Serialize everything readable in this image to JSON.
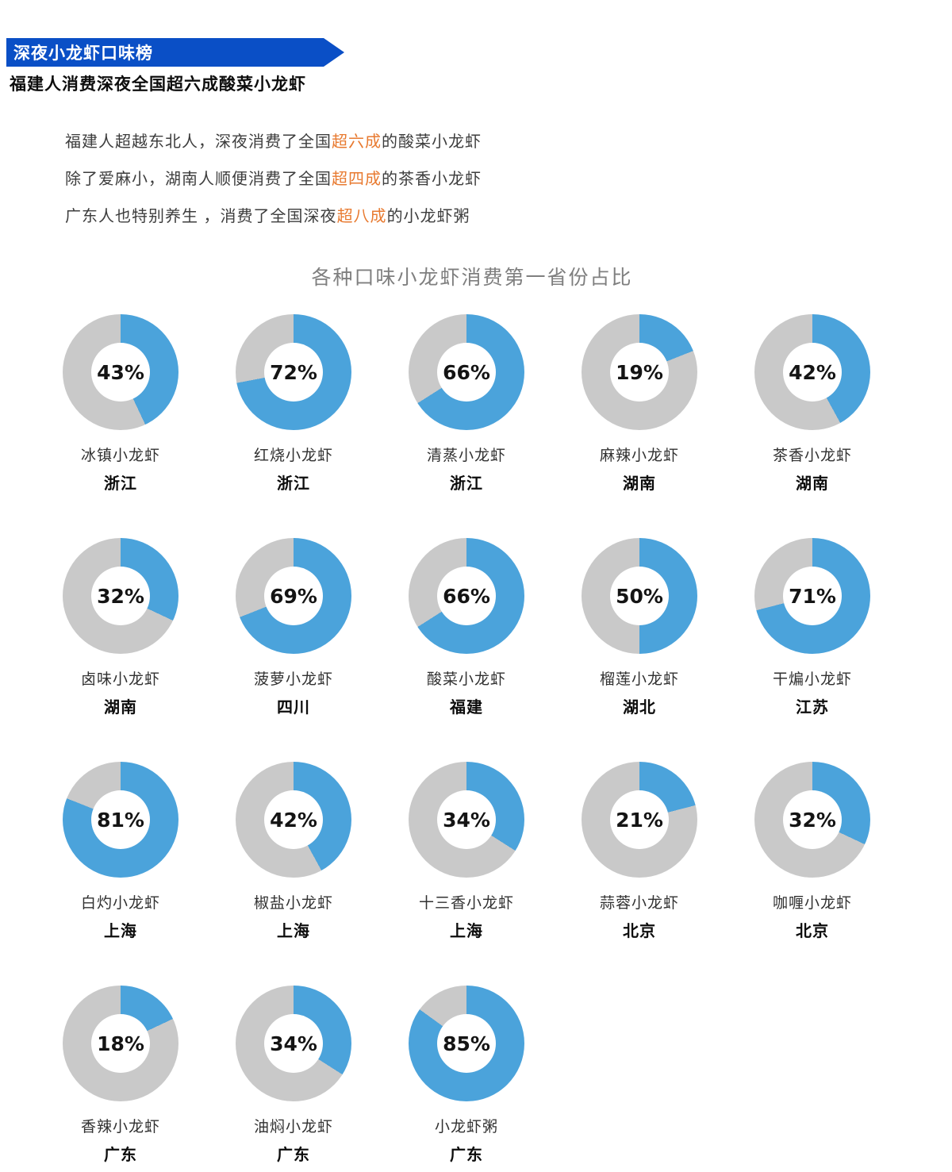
{
  "header": {
    "banner_title": "深夜小龙虾口味榜",
    "subtitle": "福建人消费深夜全国超六成酸菜小龙虾",
    "banner_color": "#0a4fc6"
  },
  "intro": {
    "highlight_color": "#e87a30",
    "lines": [
      {
        "pre": "福建人超越东北人，深夜消费了全国",
        "highlight": "超六成",
        "post": "的酸菜小龙虾"
      },
      {
        "pre": "除了爱麻小，湖南人顺便消费了全国",
        "highlight": "超四成",
        "post": "的茶香小龙虾"
      },
      {
        "pre": "广东人也特别养生 ，消费了全国深夜",
        "highlight": "超八成",
        "post": "的小龙虾粥"
      }
    ]
  },
  "chart_data": {
    "type": "pie",
    "variant": "donut-small-multiples",
    "title": "各种口味小龙虾消费第一省份占比",
    "legend": "none",
    "colors": {
      "value": "#4ba3db",
      "remainder": "#c9c9c9",
      "hole": "#ffffff"
    },
    "columns": 5,
    "items": [
      {
        "percent": 43,
        "percent_text": "43%",
        "flavor": "冰镇小龙虾",
        "province": "浙江"
      },
      {
        "percent": 72,
        "percent_text": "72%",
        "flavor": "红烧小龙虾",
        "province": "浙江"
      },
      {
        "percent": 66,
        "percent_text": "66%",
        "flavor": "清蒸小龙虾",
        "province": "浙江"
      },
      {
        "percent": 19,
        "percent_text": "19%",
        "flavor": "麻辣小龙虾",
        "province": "湖南"
      },
      {
        "percent": 42,
        "percent_text": "42%",
        "flavor": "茶香小龙虾",
        "province": "湖南"
      },
      {
        "percent": 32,
        "percent_text": "32%",
        "flavor": "卤味小龙虾",
        "province": "湖南"
      },
      {
        "percent": 69,
        "percent_text": "69%",
        "flavor": "菠萝小龙虾",
        "province": "四川"
      },
      {
        "percent": 66,
        "percent_text": "66%",
        "flavor": "酸菜小龙虾",
        "province": "福建"
      },
      {
        "percent": 50,
        "percent_text": "50%",
        "flavor": "榴莲小龙虾",
        "province": "湖北"
      },
      {
        "percent": 71,
        "percent_text": "71%",
        "flavor": "干煸小龙虾",
        "province": "江苏"
      },
      {
        "percent": 81,
        "percent_text": "81%",
        "flavor": "白灼小龙虾",
        "province": "上海"
      },
      {
        "percent": 42,
        "percent_text": "42%",
        "flavor": "椒盐小龙虾",
        "province": "上海"
      },
      {
        "percent": 34,
        "percent_text": "34%",
        "flavor": "十三香小龙虾",
        "province": "上海"
      },
      {
        "percent": 21,
        "percent_text": "21%",
        "flavor": "蒜蓉小龙虾",
        "province": "北京"
      },
      {
        "percent": 32,
        "percent_text": "32%",
        "flavor": "咖喱小龙虾",
        "province": "北京"
      },
      {
        "percent": 18,
        "percent_text": "18%",
        "flavor": "香辣小龙虾",
        "province": "广东"
      },
      {
        "percent": 34,
        "percent_text": "34%",
        "flavor": "油焖小龙虾",
        "province": "广东"
      },
      {
        "percent": 85,
        "percent_text": "85%",
        "flavor": "小龙虾粥",
        "province": "广东"
      }
    ]
  }
}
